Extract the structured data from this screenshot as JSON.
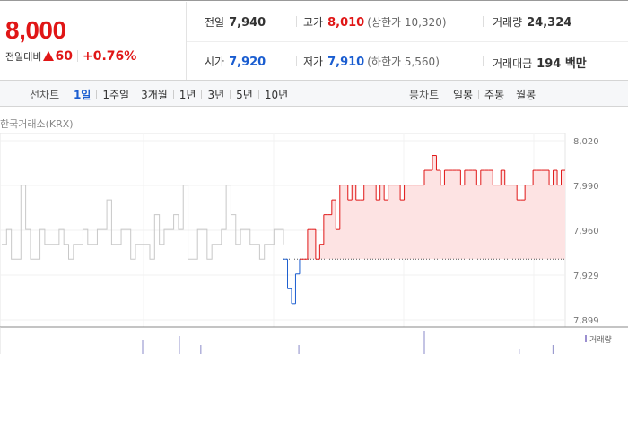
{
  "summary": {
    "price": "8,000",
    "change_label": "전일대비",
    "change_value": "60",
    "change_pct": "+0.76%",
    "up_icon": "triangle-up-icon"
  },
  "stats": {
    "prev_close": {
      "label": "전일",
      "value": "7,940"
    },
    "high": {
      "label": "고가",
      "value": "8,010",
      "sub": "(상한가 10,320)"
    },
    "volume": {
      "label": "거래량",
      "value": "24,324"
    },
    "open": {
      "label": "시가",
      "value": "7,920"
    },
    "low": {
      "label": "저가",
      "value": "7,910",
      "sub": "(하한가 5,560)"
    },
    "amount": {
      "label": "거래대금",
      "value": "194 백만"
    }
  },
  "tabs": {
    "line_label": "선차트",
    "line": [
      "1일",
      "1주일",
      "3개월",
      "1년",
      "3년",
      "5년",
      "10년"
    ],
    "line_active": 0,
    "candle_label": "봉차트",
    "candle": [
      "일봉",
      "주봉",
      "월봉"
    ]
  },
  "source": "한국거래소(KRX)",
  "colors": {
    "up": "#e01616",
    "down": "#1a5dd0",
    "prev": "#c8c8c8",
    "fill": "#fde3e3"
  },
  "chart_data": {
    "type": "line",
    "baseline": 7940,
    "ylim": [
      7899,
      8020
    ],
    "yticks": [
      "8,020",
      "7,990",
      "7,960",
      "7,929",
      "7,899"
    ],
    "series": [
      {
        "values": [
          7950,
          7960,
          7940,
          7940,
          7990,
          7960,
          7940,
          7940,
          7960,
          7950,
          7950,
          7950,
          7960,
          7950,
          7940,
          7950,
          7950,
          7960,
          7950,
          7950,
          7960,
          7960,
          7980,
          7950,
          7950,
          7960,
          7960,
          7940,
          7950,
          7950,
          7950,
          7940,
          7970,
          7950,
          7960,
          7960,
          7970,
          7960,
          7990,
          7940,
          7940,
          7960,
          7960,
          7940,
          7950,
          7950,
          7960,
          7990,
          7970,
          7950,
          7960,
          7960,
          7950,
          7950,
          7940,
          7950,
          7950,
          7960,
          7960,
          7950
        ]
      },
      {
        "values": [
          7940,
          7920,
          7910,
          7930,
          7940,
          7940,
          7960,
          7960,
          7940,
          7950,
          7970,
          7970,
          7980,
          7960,
          7990,
          7990,
          7980,
          7990,
          7980,
          7980,
          7990,
          7990,
          7990,
          7980,
          7990,
          7980,
          7990,
          7990,
          7990,
          7980,
          7990,
          7990,
          7990,
          7990,
          7990,
          8000,
          8000,
          8010,
          8000,
          7990,
          8000,
          8000,
          8000,
          8000,
          7990,
          8000,
          8000,
          8000,
          7990,
          8000,
          8000,
          8000,
          7990,
          7990,
          8000,
          7990,
          7990,
          7990,
          7980,
          7980,
          7990,
          7990,
          8000,
          8000,
          8000,
          8000,
          7990,
          8000,
          7990,
          8000,
          8000
        ]
      }
    ],
    "volume_legend": "거래량",
    "volume": [
      0,
      0,
      0,
      0,
      0,
      0,
      0,
      0,
      0,
      0,
      0,
      0,
      0,
      0,
      0,
      0,
      0,
      0,
      0,
      0,
      0,
      0,
      0,
      0,
      0,
      0,
      0,
      0,
      0,
      0,
      0,
      0,
      0,
      0,
      0,
      0,
      0,
      0,
      0,
      0,
      0,
      0,
      0,
      0,
      0,
      0,
      3,
      0,
      0,
      0,
      0,
      0,
      0,
      0,
      0,
      0,
      0,
      0,
      4,
      0,
      0,
      0,
      0,
      0,
      0,
      2,
      0,
      0,
      0,
      0,
      0,
      0,
      0,
      0,
      0,
      0,
      0,
      0,
      0,
      0,
      0,
      0,
      0,
      0,
      0,
      0,
      0,
      0,
      0,
      0,
      0,
      0,
      0,
      0,
      0,
      0,
      0,
      2,
      0,
      0,
      0,
      0,
      0,
      0,
      0,
      0,
      0,
      0,
      0,
      0,
      0,
      0,
      0,
      0,
      0,
      0,
      0,
      0,
      0,
      0,
      0,
      0,
      0,
      0,
      0,
      0,
      0,
      0,
      0,
      0,
      0,
      0,
      0,
      0,
      0,
      0,
      0,
      0,
      5,
      0,
      0,
      0,
      0,
      0,
      0,
      0,
      0,
      0,
      0,
      0,
      0,
      0,
      0,
      0,
      0,
      0,
      0,
      0,
      0,
      0,
      0,
      0,
      0,
      0,
      0,
      0,
      0,
      0,
      0,
      1,
      0,
      0,
      0,
      0,
      0,
      0,
      0,
      0,
      0,
      0,
      2,
      0,
      0,
      0,
      0
    ]
  }
}
